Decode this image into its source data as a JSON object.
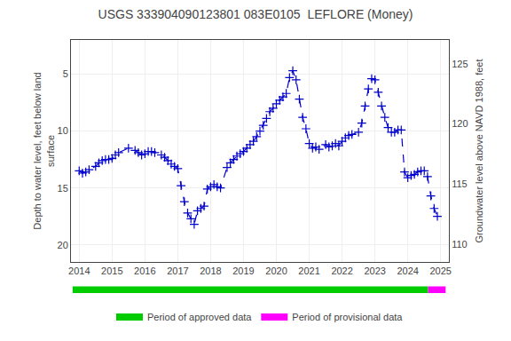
{
  "chart_data": {
    "type": "line",
    "title": "USGS 333904090123801 083E0105  LEFLORE (Money)",
    "ylabel": "Depth to water level, feet below land\nsurface",
    "y2label": "Groundwater level above NAVD 1988, feet",
    "x": [
      2014.0,
      2014.1,
      2014.2,
      2014.3,
      2014.5,
      2014.6,
      2014.7,
      2014.8,
      2014.9,
      2015.0,
      2015.1,
      2015.2,
      2015.5,
      2015.7,
      2015.8,
      2015.9,
      2016.0,
      2016.1,
      2016.2,
      2016.3,
      2016.5,
      2016.6,
      2016.7,
      2016.8,
      2016.9,
      2017.0,
      2017.1,
      2017.2,
      2017.3,
      2017.4,
      2017.5,
      2017.6,
      2017.7,
      2017.8,
      2017.9,
      2018.0,
      2018.1,
      2018.2,
      2018.3,
      2018.5,
      2018.6,
      2018.7,
      2018.8,
      2018.9,
      2019.0,
      2019.1,
      2019.2,
      2019.3,
      2019.4,
      2019.5,
      2019.6,
      2019.7,
      2019.8,
      2019.9,
      2020.0,
      2020.1,
      2020.2,
      2020.3,
      2020.4,
      2020.5,
      2020.6,
      2020.7,
      2020.8,
      2020.9,
      2021.0,
      2021.1,
      2021.2,
      2021.3,
      2021.5,
      2021.6,
      2021.7,
      2021.8,
      2021.9,
      2022.0,
      2022.1,
      2022.2,
      2022.3,
      2022.5,
      2022.6,
      2022.7,
      2022.8,
      2022.9,
      2023.0,
      2023.1,
      2023.2,
      2023.3,
      2023.4,
      2023.5,
      2023.6,
      2023.7,
      2023.8,
      2023.9,
      2024.0,
      2024.1,
      2024.2,
      2024.3,
      2024.4,
      2024.5,
      2024.6,
      2024.7,
      2024.8,
      2024.9
    ],
    "values": [
      13.5,
      13.7,
      13.6,
      13.4,
      13.1,
      12.8,
      12.6,
      12.5,
      12.5,
      12.4,
      12.1,
      11.9,
      11.5,
      11.7,
      11.9,
      12.1,
      12.0,
      11.8,
      11.8,
      11.9,
      12.1,
      12.3,
      12.6,
      12.9,
      13.1,
      13.3,
      14.8,
      16.2,
      17.2,
      17.7,
      18.2,
      17.0,
      16.8,
      16.6,
      15.1,
      14.9,
      14.7,
      14.9,
      15.0,
      13.2,
      12.8,
      12.5,
      12.2,
      12.0,
      11.8,
      11.5,
      11.2,
      10.9,
      10.5,
      10.0,
      9.5,
      8.9,
      8.3,
      8.0,
      7.6,
      7.3,
      7.0,
      6.7,
      5.3,
      4.7,
      5.5,
      7.2,
      8.8,
      9.8,
      11.1,
      11.5,
      11.4,
      11.6,
      11.2,
      11.4,
      11.3,
      11.1,
      11.3,
      10.9,
      10.6,
      10.4,
      10.3,
      10.1,
      9.3,
      7.8,
      6.3,
      5.4,
      5.5,
      6.6,
      7.8,
      8.8,
      9.7,
      10.1,
      10.1,
      9.9,
      9.9,
      13.6,
      14.1,
      13.9,
      13.8,
      13.6,
      13.5,
      13.5,
      14.0,
      15.7,
      16.8,
      17.5
    ],
    "color": "#0000CC",
    "marker": "+",
    "line_style": "--",
    "xlim": [
      2013.75,
      2025.25
    ],
    "xticks": [
      2014,
      2015,
      2016,
      2017,
      2018,
      2019,
      2020,
      2021,
      2022,
      2023,
      2024,
      2025
    ],
    "ylim": [
      21.5,
      2.0
    ],
    "yticks": [
      5,
      10,
      15,
      20
    ],
    "y2lim": [
      108.5,
      127.0
    ],
    "y2ticks": [
      110,
      115,
      120,
      125
    ],
    "grid": true,
    "legend": "bottom",
    "periods": [
      {
        "name": "Period of approved data",
        "color": "#00CC00",
        "start": 2013.8,
        "end": 2024.62
      },
      {
        "name": "Period of provisional data",
        "color": "#FF00FF",
        "start": 2024.62,
        "end": 2025.15
      }
    ]
  }
}
